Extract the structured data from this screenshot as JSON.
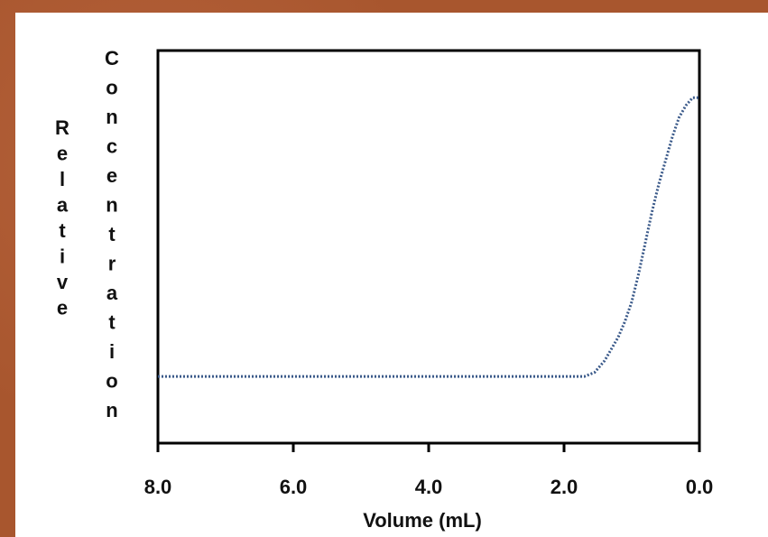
{
  "colors": {
    "background": "#a8562e",
    "panel": "#ffffff",
    "axis": "#000000",
    "series": "#3b5a8a"
  },
  "chart_data": {
    "type": "line",
    "title": "",
    "xlabel": "Volume (mL)",
    "ylabel_parts": [
      "Relative",
      "Concentration"
    ],
    "x_reversed": true,
    "xlim": [
      8.0,
      0.0
    ],
    "ylim": [
      0,
      1
    ],
    "x_ticks": [
      "8.0",
      "6.0",
      "4.0",
      "2.0",
      "0.0"
    ],
    "x_tick_values": [
      8.0,
      6.0,
      4.0,
      2.0,
      0.0
    ],
    "grid": false,
    "series": [
      {
        "style": "dotted",
        "x": [
          8.0,
          7.0,
          6.0,
          5.0,
          4.0,
          3.0,
          2.0,
          1.7,
          1.55,
          1.4,
          1.3,
          1.2,
          1.1,
          1.0,
          0.9,
          0.8,
          0.7,
          0.6,
          0.5,
          0.4,
          0.3,
          0.2,
          0.1,
          0.0
        ],
        "y": [
          0.17,
          0.17,
          0.17,
          0.17,
          0.17,
          0.17,
          0.17,
          0.17,
          0.18,
          0.21,
          0.24,
          0.27,
          0.31,
          0.36,
          0.43,
          0.51,
          0.59,
          0.66,
          0.72,
          0.78,
          0.83,
          0.86,
          0.88,
          0.88
        ]
      }
    ]
  }
}
